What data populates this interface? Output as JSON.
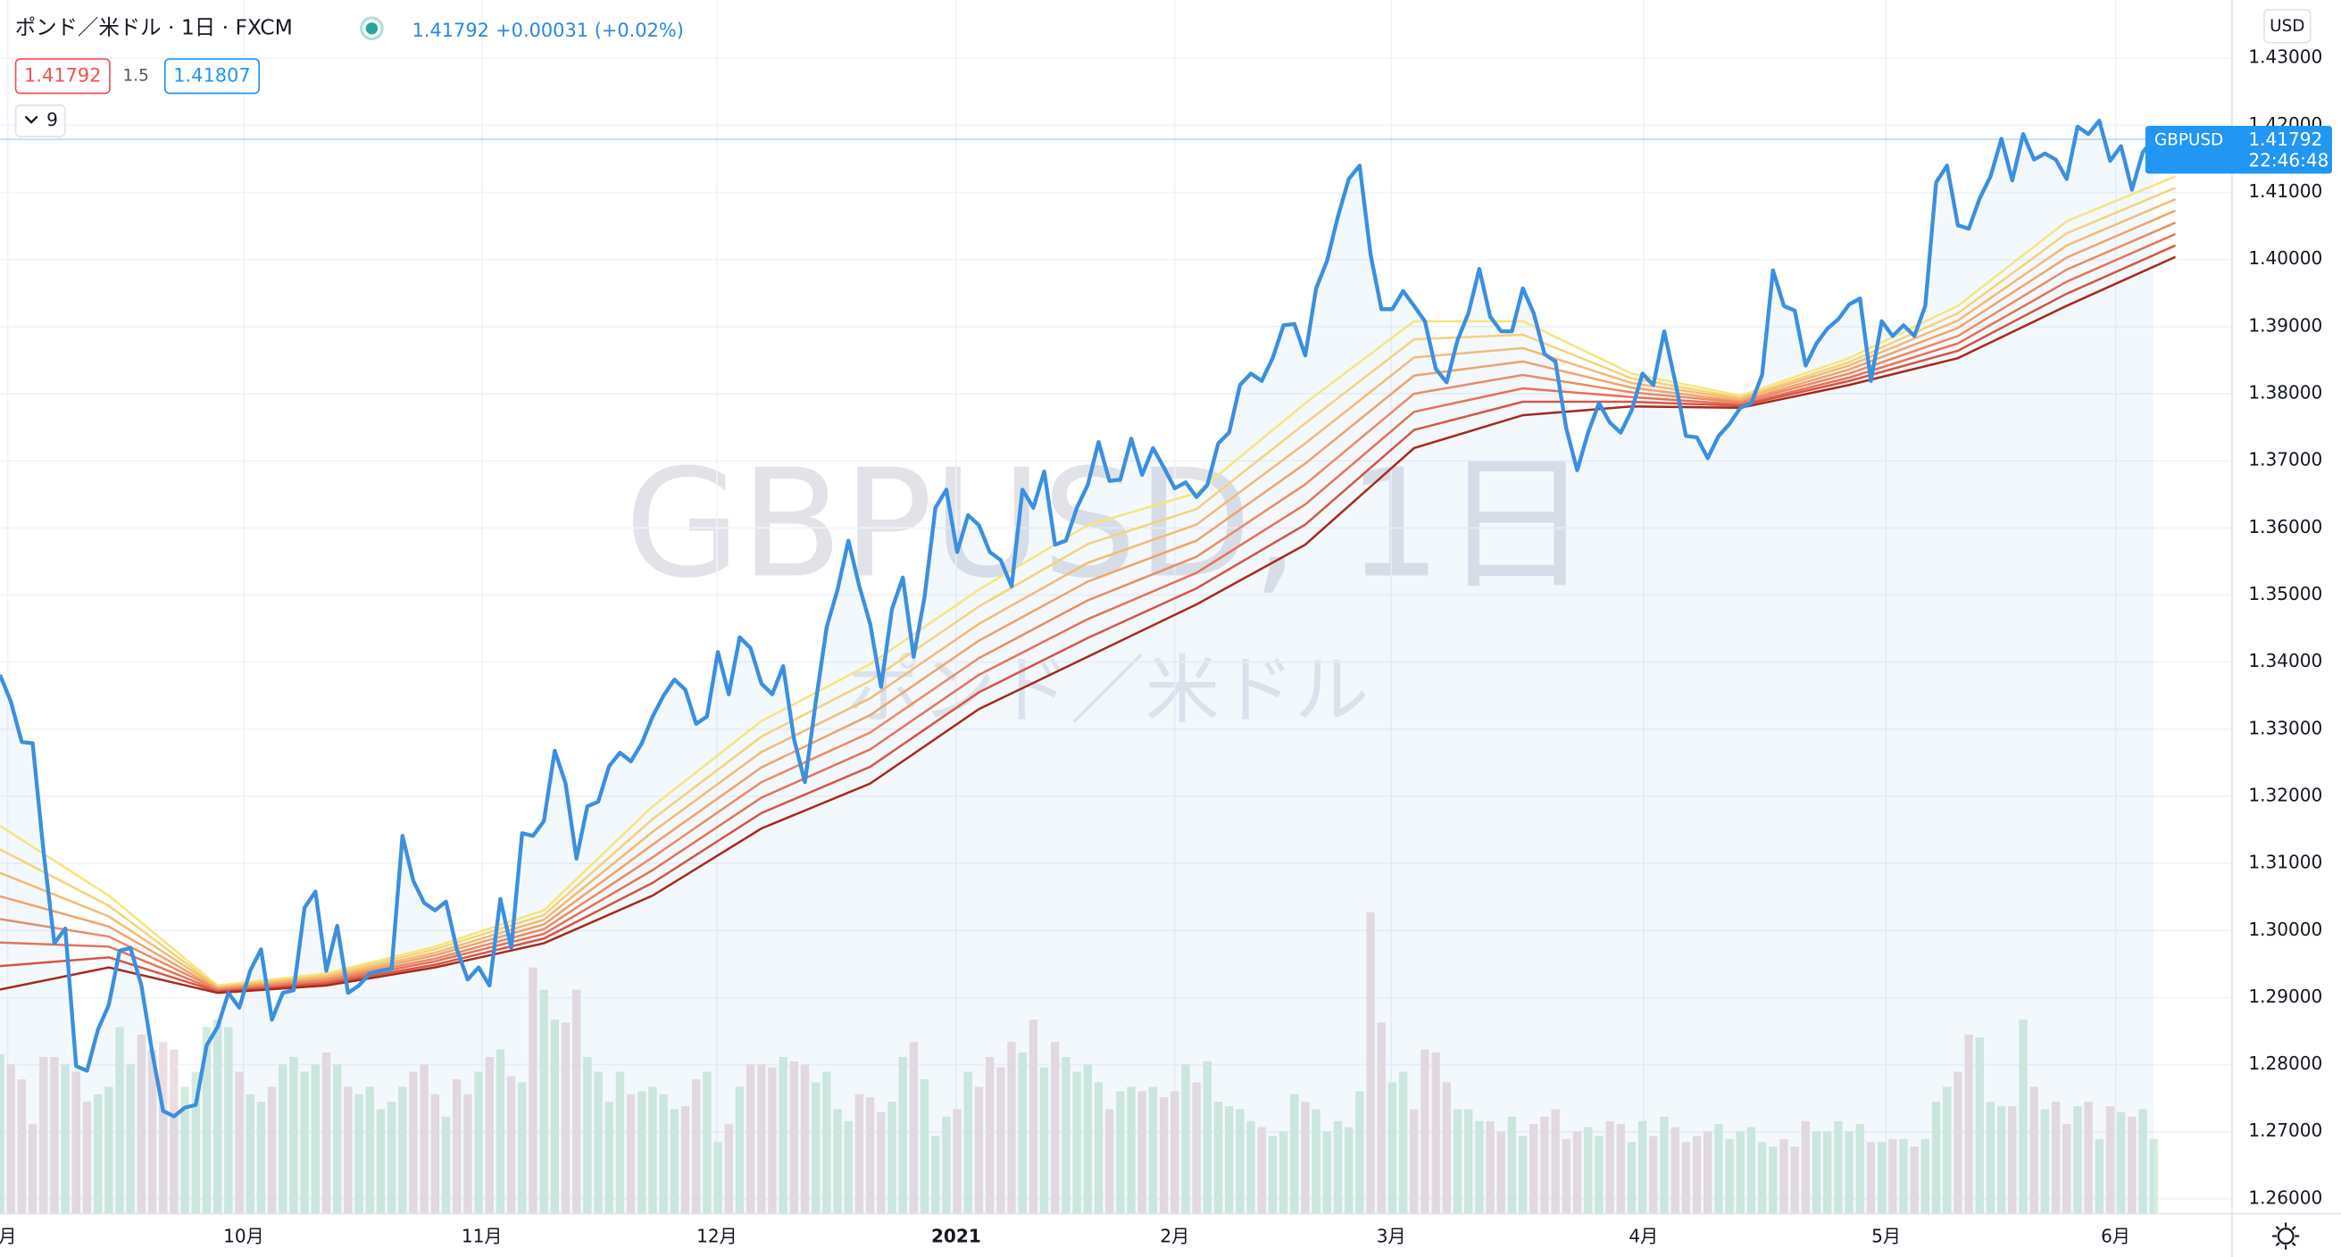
{
  "header": {
    "symbol_title": "ポンド／米ドル · 1日 · FXCM",
    "last": "1.41792",
    "change": "+0.00031 (+0.02%)",
    "bid": "1.41792",
    "spread": "1.5",
    "ask": "1.41807",
    "indicator_count": "9"
  },
  "chart_data": {
    "type": "line",
    "watermark_symbol": "GBPUSD, 1日",
    "watermark_name": "ポンド／米ドル",
    "currency": "USD",
    "xlim": [
      0,
      205.2
    ],
    "ylim": [
      1.25779,
      1.43868
    ],
    "grid": true,
    "xticks": [
      {
        "value": 0.7,
        "label": "月"
      },
      {
        "value": 22.4,
        "label": "10月"
      },
      {
        "value": 44.3,
        "label": "11月"
      },
      {
        "value": 65.9,
        "label": "12月"
      },
      {
        "value": 87.9,
        "label": "2021"
      },
      {
        "value": 108.0,
        "label": "2月"
      },
      {
        "value": 127.9,
        "label": "3月"
      },
      {
        "value": 151.1,
        "label": "4月"
      },
      {
        "value": 173.4,
        "label": "5月"
      },
      {
        "value": 194.5,
        "label": "6月"
      }
    ],
    "yticks": [
      {
        "value": 1.26,
        "label": "1.26000"
      },
      {
        "value": 1.27,
        "label": "1.27000"
      },
      {
        "value": 1.28,
        "label": "1.28000"
      },
      {
        "value": 1.29,
        "label": "1.29000"
      },
      {
        "value": 1.3,
        "label": "1.30000"
      },
      {
        "value": 1.31,
        "label": "1.31000"
      },
      {
        "value": 1.32,
        "label": "1.32000"
      },
      {
        "value": 1.33,
        "label": "1.33000"
      },
      {
        "value": 1.34,
        "label": "1.34000"
      },
      {
        "value": 1.35,
        "label": "1.35000"
      },
      {
        "value": 1.36,
        "label": "1.36000"
      },
      {
        "value": 1.37,
        "label": "1.37000"
      },
      {
        "value": 1.38,
        "label": "1.38000"
      },
      {
        "value": 1.39,
        "label": "1.39000"
      },
      {
        "value": 1.4,
        "label": "1.40000"
      },
      {
        "value": 1.41,
        "label": "1.41000"
      },
      {
        "value": 1.42,
        "label": "1.42000"
      },
      {
        "value": 1.43,
        "label": "1.43000"
      }
    ],
    "series": [
      {
        "name": "GBPUSD",
        "color": "#3b8fe0",
        "values": [
          1.3381,
          1.3341,
          1.3281,
          1.3279,
          1.3118,
          1.2981,
          1.3003,
          1.2798,
          1.2791,
          1.2852,
          1.2889,
          1.297,
          1.2974,
          1.2918,
          1.2818,
          1.2731,
          1.2723,
          1.2736,
          1.274,
          1.2829,
          1.2856,
          1.2907,
          1.2885,
          1.294,
          1.2972,
          1.2867,
          1.2907,
          1.2911,
          1.3034,
          1.3058,
          1.294,
          1.3007,
          1.2907,
          1.2918,
          1.2936,
          1.294,
          1.2943,
          1.3141,
          1.3074,
          1.3041,
          1.303,
          1.3043,
          1.2972,
          1.2927,
          1.2945,
          1.2918,
          1.3047,
          1.2974,
          1.3145,
          1.3141,
          1.3163,
          1.3268,
          1.3219,
          1.3107,
          1.3185,
          1.3192,
          1.3245,
          1.3265,
          1.3252,
          1.3279,
          1.3319,
          1.335,
          1.3374,
          1.3359,
          1.3308,
          1.3319,
          1.3415,
          1.3352,
          1.3437,
          1.3421,
          1.3368,
          1.3352,
          1.3394,
          1.3285,
          1.3221,
          1.3341,
          1.3452,
          1.3508,
          1.3581,
          1.3513,
          1.3457,
          1.3363,
          1.3479,
          1.3526,
          1.3408,
          1.3497,
          1.363,
          1.3657,
          1.3564,
          1.3619,
          1.3604,
          1.3564,
          1.3552,
          1.3513,
          1.3657,
          1.363,
          1.3684,
          1.3575,
          1.3581,
          1.363,
          1.3664,
          1.3728,
          1.367,
          1.3672,
          1.3733,
          1.3679,
          1.3719,
          1.369,
          1.3659,
          1.3668,
          1.3646,
          1.3664,
          1.3726,
          1.3742,
          1.3813,
          1.383,
          1.3819,
          1.3853,
          1.3902,
          1.3904,
          1.3857,
          1.3957,
          1.3998,
          1.4064,
          1.412,
          1.414,
          1.4008,
          1.3926,
          1.3926,
          1.3953,
          1.3931,
          1.3908,
          1.3837,
          1.3817,
          1.388,
          1.392,
          1.3986,
          1.3915,
          1.3893,
          1.3893,
          1.3957,
          1.392,
          1.3859,
          1.3848,
          1.3748,
          1.3686,
          1.3742,
          1.3786,
          1.3757,
          1.3742,
          1.3775,
          1.383,
          1.3813,
          1.3893,
          1.3819,
          1.3737,
          1.3735,
          1.3704,
          1.3737,
          1.3755,
          1.3779,
          1.3786,
          1.3828,
          1.3984,
          1.3931,
          1.3924,
          1.3842,
          1.3875,
          1.3897,
          1.3911,
          1.3933,
          1.3942,
          1.3819,
          1.3908,
          1.3886,
          1.3902,
          1.3886,
          1.3931,
          1.4115,
          1.414,
          1.4051,
          1.4046,
          1.4091,
          1.4124,
          1.418,
          1.4118,
          1.4187,
          1.4149,
          1.4158,
          1.4149,
          1.412,
          1.4198,
          1.4187,
          1.4207,
          1.4147,
          1.4169,
          1.4104,
          1.416,
          1.41792
        ]
      }
    ],
    "last_price_label": "1.41792",
    "countdown": "22:46:48",
    "ribbon": {
      "x": [
        0,
        10,
        20,
        30,
        40,
        50,
        60,
        70,
        80,
        90,
        100,
        110,
        120,
        130,
        140,
        150,
        160,
        170,
        180,
        190,
        200
      ],
      "series": [
        {
          "color": "#f7e57b",
          "values": [
            1.3156,
            1.3052,
            1.2918,
            1.2936,
            1.2976,
            1.303,
            1.3185,
            1.3312,
            1.3397,
            1.3508,
            1.3604,
            1.3652,
            1.3786,
            1.3908,
            1.3908,
            1.383,
            1.3797,
            1.3853,
            1.3931,
            1.4057,
            1.4124
          ]
        },
        {
          "color": "#f5d27a",
          "values": [
            1.3121,
            1.3037,
            1.2916,
            1.2933,
            1.2972,
            1.3023,
            1.3166,
            1.3289,
            1.3372,
            1.3483,
            1.3576,
            1.3628,
            1.3756,
            1.3881,
            1.3888,
            1.3823,
            1.3794,
            1.3847,
            1.392,
            1.4039,
            1.4107
          ]
        },
        {
          "color": "#f3bb72",
          "values": [
            1.3086,
            1.3021,
            1.2915,
            1.2931,
            1.2967,
            1.3016,
            1.3147,
            1.3266,
            1.3346,
            1.3457,
            1.3548,
            1.3605,
            1.3726,
            1.3854,
            1.3868,
            1.3816,
            1.3792,
            1.3842,
            1.3909,
            1.4021,
            1.409
          ]
        },
        {
          "color": "#f0a36a",
          "values": [
            1.3051,
            1.3006,
            1.2913,
            1.2928,
            1.2963,
            1.3009,
            1.3128,
            1.3243,
            1.3321,
            1.3432,
            1.352,
            1.3581,
            1.3696,
            1.3827,
            1.3848,
            1.3809,
            1.3789,
            1.3836,
            1.3898,
            1.4003,
            1.4073
          ]
        },
        {
          "color": "#ec8b62",
          "values": [
            1.3017,
            1.2991,
            1.2912,
            1.2926,
            1.2958,
            1.3002,
            1.3109,
            1.3221,
            1.3295,
            1.3406,
            1.3492,
            1.3557,
            1.3665,
            1.38,
            1.3828,
            1.3802,
            1.3787,
            1.383,
            1.3886,
            1.3985,
            1.4055
          ]
        },
        {
          "color": "#e67257",
          "values": [
            1.2982,
            1.2976,
            1.291,
            1.2923,
            1.2954,
            1.2995,
            1.309,
            1.3198,
            1.327,
            1.3381,
            1.3464,
            1.3533,
            1.3635,
            1.3773,
            1.3808,
            1.3795,
            1.3784,
            1.3824,
            1.3875,
            1.3967,
            1.4038
          ]
        },
        {
          "color": "#d55644",
          "values": [
            1.2947,
            1.296,
            1.2909,
            1.2921,
            1.2949,
            1.2988,
            1.3071,
            1.3175,
            1.3244,
            1.3355,
            1.3436,
            1.351,
            1.3605,
            1.3746,
            1.3788,
            1.3788,
            1.3782,
            1.3819,
            1.3864,
            1.3949,
            1.4021
          ]
        },
        {
          "color": "#a8291b",
          "values": [
            1.2912,
            1.2945,
            1.2907,
            1.2918,
            1.2945,
            1.2981,
            1.3052,
            1.3152,
            1.3219,
            1.333,
            1.3408,
            1.3486,
            1.3575,
            1.3719,
            1.3768,
            1.3781,
            1.3779,
            1.3813,
            1.3853,
            1.3931,
            1.4004
          ]
        }
      ]
    },
    "volume": {
      "up_color": "#d4ecdd",
      "down_color": "#eddde1",
      "values": [
        107,
        100,
        90,
        60,
        105,
        105,
        100,
        95,
        75,
        80,
        85,
        125,
        100,
        120,
        110,
        115,
        110,
        85,
        95,
        125,
        130,
        125,
        95,
        80,
        75,
        85,
        100,
        105,
        95,
        100,
        108,
        100,
        85,
        80,
        85,
        70,
        75,
        85,
        95,
        100,
        80,
        65,
        90,
        80,
        95,
        105,
        110,
        92,
        88,
        165,
        150,
        130,
        128,
        150,
        105,
        95,
        75,
        95,
        80,
        82,
        85,
        80,
        70,
        72,
        90,
        95,
        48,
        60,
        85,
        100,
        100,
        98,
        105,
        102,
        100,
        88,
        95,
        70,
        62,
        80,
        78,
        68,
        75,
        105,
        115,
        90,
        52,
        65,
        70,
        95,
        85,
        105,
        98,
        115,
        108,
        130,
        98,
        115,
        105,
        95,
        100,
        88,
        70,
        82,
        85,
        82,
        85,
        78,
        82,
        100,
        88,
        102,
        75,
        72,
        70,
        62,
        58,
        52,
        55,
        80,
        75,
        70,
        55,
        62,
        58,
        82,
        202,
        128,
        88,
        95,
        70,
        110,
        108,
        88,
        70,
        70,
        62,
        62,
        55,
        65,
        52,
        60,
        65,
        70,
        50,
        55,
        58,
        52,
        62,
        60,
        48,
        62,
        52,
        65,
        58,
        48,
        52,
        55,
        60,
        50,
        55,
        58,
        48,
        45,
        50,
        45,
        62,
        55,
        55,
        62,
        55,
        60,
        48,
        48,
        50,
        50,
        45,
        50,
        75,
        85,
        95,
        120,
        118,
        75,
        72,
        72,
        130,
        85,
        70,
        75,
        60,
        72,
        75,
        50,
        72,
        68,
        65,
        70,
        50
      ]
    }
  }
}
